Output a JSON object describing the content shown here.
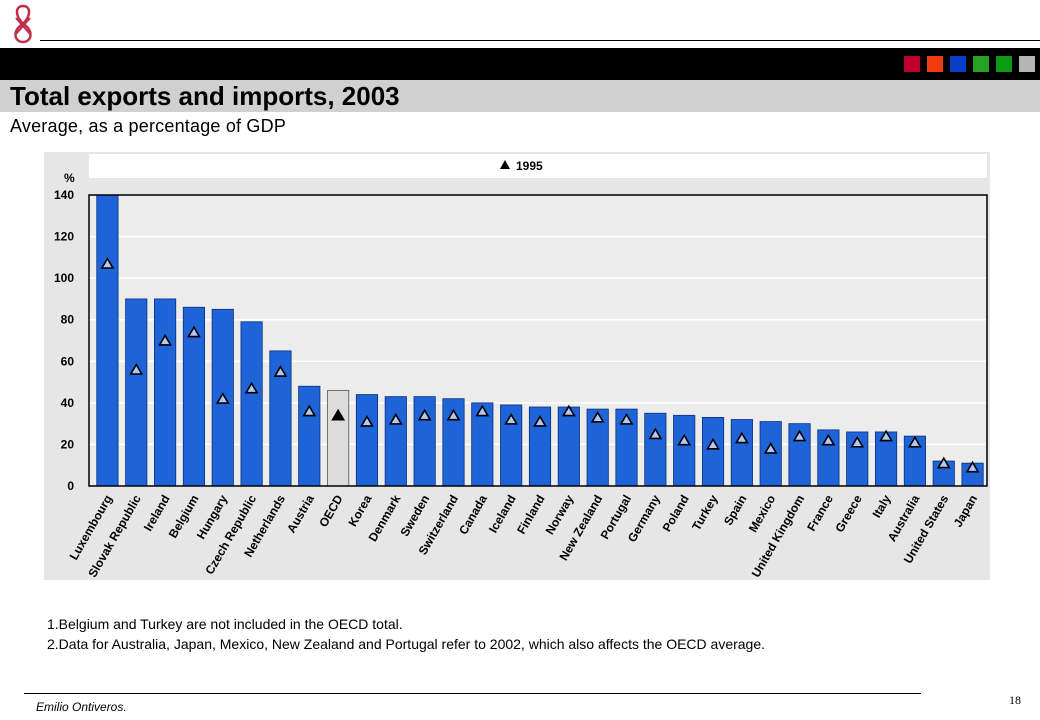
{
  "header": {
    "title": "Total exports and imports, 2003",
    "subtitle": "Average, as a percentage of GDP",
    "accent_squares": [
      "#c00028",
      "#f03c10",
      "#0a3cc8",
      "#2aa028",
      "#109a18",
      "#b4b4b4"
    ]
  },
  "chart_data": {
    "type": "bar",
    "title": "",
    "xlabel": "",
    "ylabel": "%",
    "ylim": [
      0,
      140
    ],
    "yticks": [
      0,
      20,
      40,
      60,
      80,
      100,
      120,
      140
    ],
    "grid": true,
    "legend": {
      "position": "top",
      "entries": [
        "1995"
      ]
    },
    "categories": [
      "Luxembourg",
      "Slovak Republic",
      "Ireland",
      "Belgium",
      "Hungary",
      "Czech Republic",
      "Netherlands",
      "Austria",
      "OECD",
      "Korea",
      "Denmark",
      "Sweden",
      "Switzerland",
      "Canada",
      "Iceland",
      "Finland",
      "Norway",
      "New Zealand",
      "Portugal",
      "Germany",
      "Poland",
      "Turkey",
      "Spain",
      "Mexico",
      "United Kingdom",
      "France",
      "Greece",
      "Italy",
      "Australia",
      "United States",
      "Japan"
    ],
    "series": [
      {
        "name": "",
        "values": [
          140,
          90,
          90,
          86,
          85,
          79,
          65,
          48,
          46,
          44,
          43,
          43,
          42,
          40,
          39,
          38,
          38,
          37,
          37,
          35,
          34,
          33,
          32,
          31,
          30,
          27,
          26,
          26,
          24,
          12,
          11
        ]
      },
      {
        "name": "1995",
        "values": [
          107,
          56,
          70,
          74,
          42,
          47,
          55,
          36,
          34,
          31,
          32,
          34,
          34,
          36,
          32,
          31,
          36,
          33,
          32,
          25,
          22,
          20,
          23,
          18,
          24,
          22,
          21,
          24,
          21,
          11,
          9
        ]
      }
    ],
    "highlight_category": "OECD",
    "bar_color": "#1e64d8",
    "highlight_color": "#dcdcdc",
    "marker_color": "#b4c8f0"
  },
  "notes": [
    "1.Belgium and Turkey are not included in the OECD total.",
    "2.Data for Australia, Japan, Mexico, New Zealand and Portugal refer to 2002, which also affects the OECD average."
  ],
  "footer": {
    "author": "Emilio Ontiveros.",
    "page": "18"
  }
}
